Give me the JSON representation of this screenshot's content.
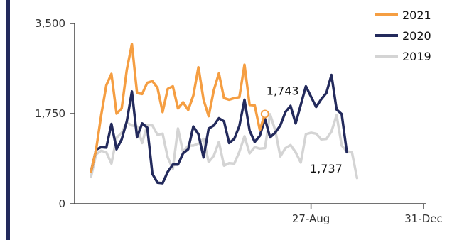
{
  "chart_data": {
    "type": "line",
    "xlabel": "",
    "ylabel": "",
    "ylim": [
      0,
      3500
    ],
    "yticks": [
      0,
      1750,
      3500
    ],
    "ytick_labels": [
      "0",
      "1,750",
      "3,500"
    ],
    "xticks": [
      {
        "index": 43,
        "label": "27-Aug"
      },
      {
        "index": 65,
        "label": "31-Dec"
      }
    ],
    "grid": false,
    "legend_position": "top-right",
    "series": [
      {
        "name": "2021",
        "color": "#f59e42",
        "values": [
          620,
          1050,
          1720,
          2300,
          2520,
          1750,
          1850,
          2600,
          3100,
          2150,
          2130,
          2350,
          2380,
          2250,
          1780,
          2230,
          2280,
          1850,
          1970,
          1820,
          2100,
          2650,
          2020,
          1700,
          2200,
          2530,
          2050,
          2020,
          2050,
          2070,
          2700,
          1920,
          1910,
          1430,
          1743
        ]
      },
      {
        "name": "2020",
        "color": "#232a5c",
        "values": [
          620,
          1050,
          1100,
          1090,
          1550,
          1060,
          1250,
          1600,
          2180,
          1290,
          1560,
          1480,
          580,
          410,
          400,
          620,
          760,
          760,
          980,
          1060,
          1500,
          1350,
          900,
          1460,
          1520,
          1660,
          1600,
          1180,
          1260,
          1510,
          2020,
          1420,
          1200,
          1320,
          1650,
          1290,
          1380,
          1520,
          1780,
          1900,
          1560,
          1920,
          2280,
          2080,
          1880,
          2030,
          2150,
          2500,
          1830,
          1740,
          1000
        ]
      },
      {
        "name": "2019",
        "color": "#d4d4d4",
        "values": [
          520,
          960,
          1030,
          1000,
          780,
          1280,
          1380,
          1580,
          1520,
          1500,
          1180,
          1530,
          1520,
          1340,
          1360,
          900,
          680,
          1460,
          1000,
          1130,
          1130,
          1170,
          1260,
          810,
          930,
          1200,
          740,
          790,
          780,
          1010,
          1310,
          980,
          1100,
          1070,
          1080,
          1737,
          1430,
          920,
          1080,
          1140,
          1000,
          800,
          1350,
          1380,
          1360,
          1250,
          1260,
          1400,
          1720,
          1130,
          1020,
          1000,
          500
        ]
      }
    ],
    "annotations": [
      {
        "series": "2021",
        "index": 34,
        "value": 1743,
        "label": "1,743"
      },
      {
        "series": "2019",
        "index": 35,
        "value": 1737,
        "label": "1,737"
      }
    ]
  }
}
